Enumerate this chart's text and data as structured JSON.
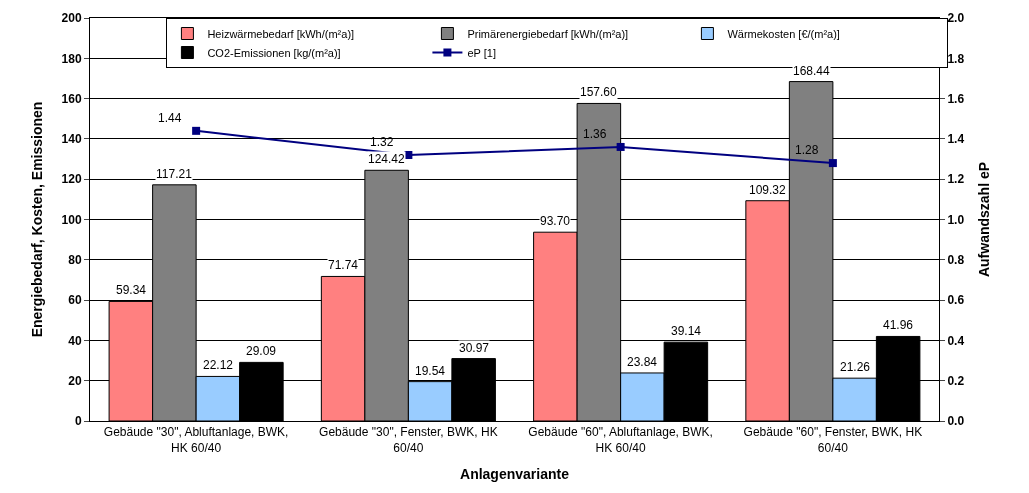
{
  "chart_data": {
    "type": "bar",
    "xlabel": "Anlagenvariante",
    "ylabel": "Energiebedarf, Kosten, Emissionen",
    "y2label": "Aufwandszahl eP",
    "categories": [
      "Gebäude \"30\", Abluftanlage, BWK, HK 60/40",
      "Gebäude \"30\", Fenster, BWK, HK 60/40",
      "Gebäude \"60\", Abluftanlage, BWK, HK 60/40",
      "Gebäude \"60\", Fenster, BWK, HK 60/40"
    ],
    "series": [
      {
        "name": "Heizwärmebedarf [kWh/(m²a)]",
        "color": "#ff8080",
        "values": [
          59.34,
          71.74,
          93.7,
          109.32
        ],
        "value_labels": [
          "59.34",
          "71.74",
          "93.70",
          "109.32"
        ]
      },
      {
        "name": "Primärenergiebedarf [kWh/(m²a)]",
        "color": "#808080",
        "values": [
          117.21,
          124.42,
          157.6,
          168.44
        ],
        "value_labels": [
          "117.21",
          "124.42",
          "157.60",
          "168.44"
        ]
      },
      {
        "name": "Wärmekosten [€/(m²a)]",
        "color": "#99ccff",
        "values": [
          22.12,
          19.54,
          23.84,
          21.26
        ],
        "value_labels": [
          "22.12",
          "19.54",
          "23.84",
          "21.26"
        ]
      },
      {
        "name": "CO2-Emissionen [kg/(m²a)]",
        "color": "#000000",
        "values": [
          29.09,
          30.97,
          39.14,
          41.96
        ],
        "value_labels": [
          "29.09",
          "30.97",
          "39.14",
          "41.96"
        ]
      },
      {
        "name": "eP [1]",
        "type": "line",
        "axis": "y2",
        "color": "#000080",
        "marker": "square",
        "values": [
          1.44,
          1.32,
          1.36,
          1.28
        ],
        "value_labels": [
          "1.44",
          "1.32",
          "1.36",
          "1.28"
        ]
      }
    ],
    "ylim": [
      0,
      200
    ],
    "yticks": [
      0,
      20,
      40,
      60,
      80,
      100,
      120,
      140,
      160,
      180,
      200
    ],
    "y2lim": [
      0,
      2.0
    ],
    "y2ticks": [
      {
        "value": 0,
        "label": "0.0"
      },
      {
        "value": 0.2,
        "label": "0.2"
      },
      {
        "value": 0.4,
        "label": "0.4"
      },
      {
        "value": 0.6,
        "label": "0.6"
      },
      {
        "value": 0.8,
        "label": "0.8"
      },
      {
        "value": 1.0,
        "label": "1.0"
      },
      {
        "value": 1.2,
        "label": "1.2"
      },
      {
        "value": 1.4,
        "label": "1.4"
      },
      {
        "value": 1.6,
        "label": "1.6"
      },
      {
        "value": 1.8,
        "label": "1.8"
      },
      {
        "value": 2.0,
        "label": "2.0"
      }
    ],
    "grid": "y",
    "legend": "top"
  }
}
